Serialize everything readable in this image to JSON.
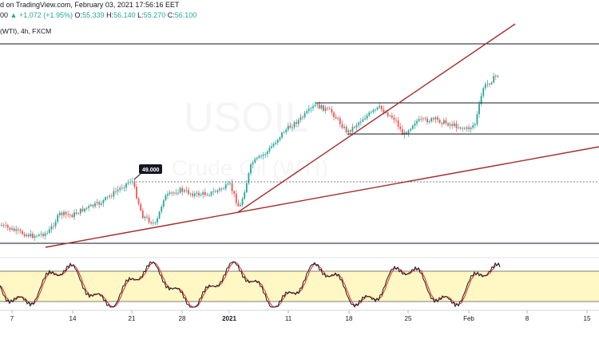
{
  "header": {
    "published": "d on TradingView.com, February 03, 2021 17:56:16 EET",
    "ohlc_prefix": "00",
    "change": "+1.072 (+1.95%)",
    "open_label": "O:",
    "open": "55.339",
    "high_label": "H:",
    "high": "56.140",
    "low_label": "L:",
    "low": "55.270",
    "close_label": "C:",
    "close": "56.100",
    "symbol": "(WTI), 4h, FXCM"
  },
  "watermark": {
    "main": "USOIL",
    "sub": "Crude Oil (WTI)"
  },
  "price_label": "49.000",
  "x_axis": {
    "ticks": [
      {
        "label": "7",
        "bold": false
      },
      {
        "label": "14",
        "bold": false
      },
      {
        "label": "21",
        "bold": false
      },
      {
        "label": "28",
        "bold": false
      },
      {
        "label": "2021",
        "bold": true
      },
      {
        "label": "11",
        "bold": false
      },
      {
        "label": "18",
        "bold": false
      },
      {
        "label": "25",
        "bold": false
      },
      {
        "label": "Feb",
        "bold": false
      },
      {
        "label": "8",
        "bold": false
      },
      {
        "label": "15",
        "bold": false
      }
    ]
  },
  "colors": {
    "up": "#26a69a",
    "down": "#ef5350",
    "trendline": "#a52a2a",
    "horizontal": "#131722",
    "stoch_k": "#131722",
    "stoch_d": "#e53935",
    "stoch_band": "#fff8c4"
  }
}
